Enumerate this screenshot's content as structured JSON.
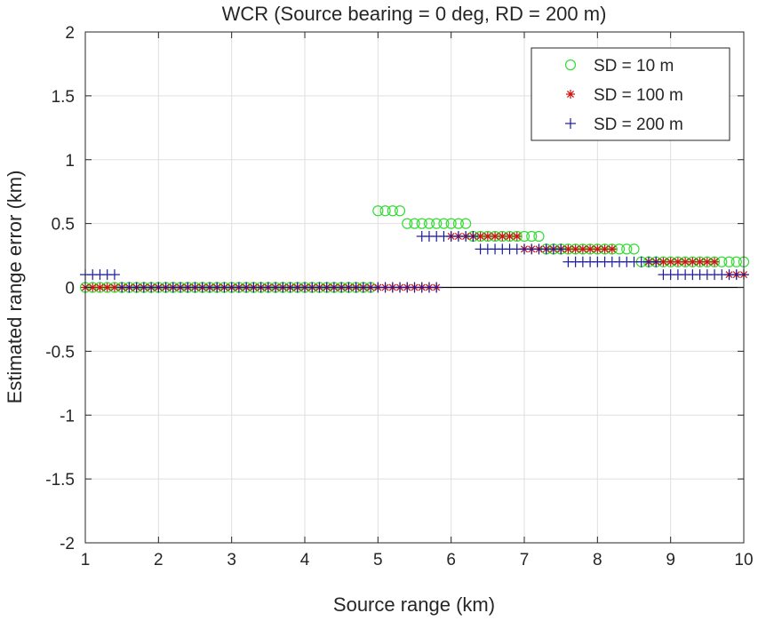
{
  "chart_data": {
    "type": "scatter",
    "title": "WCR (Source bearing = 0 deg, RD = 200 m)",
    "xlabel": "Source range (km)",
    "ylabel": "Estimated range error (km)",
    "xlim": [
      1,
      10
    ],
    "ylim": [
      -2,
      2
    ],
    "xticks": [
      1,
      2,
      3,
      4,
      5,
      6,
      7,
      8,
      9,
      10
    ],
    "yticks": [
      -2,
      -1.5,
      -1,
      -0.5,
      0,
      0.5,
      1,
      1.5,
      2
    ],
    "xtick_labels": [
      "1",
      "2",
      "3",
      "4",
      "5",
      "6",
      "7",
      "8",
      "9",
      "10"
    ],
    "ytick_labels": [
      "-2",
      "-1.5",
      "-1",
      "-0.5",
      "0",
      "0.5",
      "1",
      "1.5",
      "2"
    ],
    "grid": true,
    "legend_position": "top-right",
    "zero_line": true,
    "series": [
      {
        "name": "SD = 10 m",
        "marker": "circle",
        "color": "#33dd33",
        "segments": [
          {
            "x_start": 1.0,
            "x_end": 4.9,
            "step": 0.1,
            "y": 0.0
          },
          {
            "x_start": 5.0,
            "x_end": 5.3,
            "step": 0.1,
            "y": 0.6
          },
          {
            "x_start": 5.4,
            "x_end": 6.2,
            "step": 0.1,
            "y": 0.5
          },
          {
            "x_start": 6.3,
            "x_end": 7.2,
            "step": 0.1,
            "y": 0.4
          },
          {
            "x_start": 7.3,
            "x_end": 8.5,
            "step": 0.1,
            "y": 0.3
          },
          {
            "x_start": 8.6,
            "x_end": 9.6,
            "step": 0.1,
            "y": 0.2
          },
          {
            "x_start": 9.7,
            "x_end": 10.0,
            "step": 0.1,
            "y": 0.2
          }
        ]
      },
      {
        "name": "SD = 100 m",
        "marker": "asterisk",
        "color": "#cc1111",
        "segments": [
          {
            "x_start": 1.0,
            "x_end": 5.8,
            "step": 0.1,
            "y": 0.0
          },
          {
            "x_start": 6.0,
            "x_end": 6.9,
            "step": 0.1,
            "y": 0.4
          },
          {
            "x_start": 7.0,
            "x_end": 8.2,
            "step": 0.1,
            "y": 0.3
          },
          {
            "x_start": 8.7,
            "x_end": 9.6,
            "step": 0.1,
            "y": 0.2
          },
          {
            "x_start": 9.8,
            "x_end": 10.0,
            "step": 0.1,
            "y": 0.1
          }
        ]
      },
      {
        "name": "SD = 200 m",
        "marker": "plus",
        "color": "#1a1a99",
        "segments": [
          {
            "x_start": 1.0,
            "x_end": 1.4,
            "step": 0.1,
            "y": 0.1
          },
          {
            "x_start": 1.5,
            "x_end": 5.8,
            "step": 0.1,
            "y": 0.0
          },
          {
            "x_start": 5.6,
            "x_end": 6.3,
            "step": 0.1,
            "y": 0.4
          },
          {
            "x_start": 6.4,
            "x_end": 7.5,
            "step": 0.1,
            "y": 0.3
          },
          {
            "x_start": 7.6,
            "x_end": 8.6,
            "step": 0.1,
            "y": 0.2
          },
          {
            "x_start": 8.7,
            "x_end": 8.8,
            "step": 0.1,
            "y": 0.2
          },
          {
            "x_start": 8.9,
            "x_end": 9.7,
            "step": 0.1,
            "y": 0.1
          },
          {
            "x_start": 9.8,
            "x_end": 10.0,
            "step": 0.1,
            "y": 0.1
          }
        ]
      }
    ]
  }
}
